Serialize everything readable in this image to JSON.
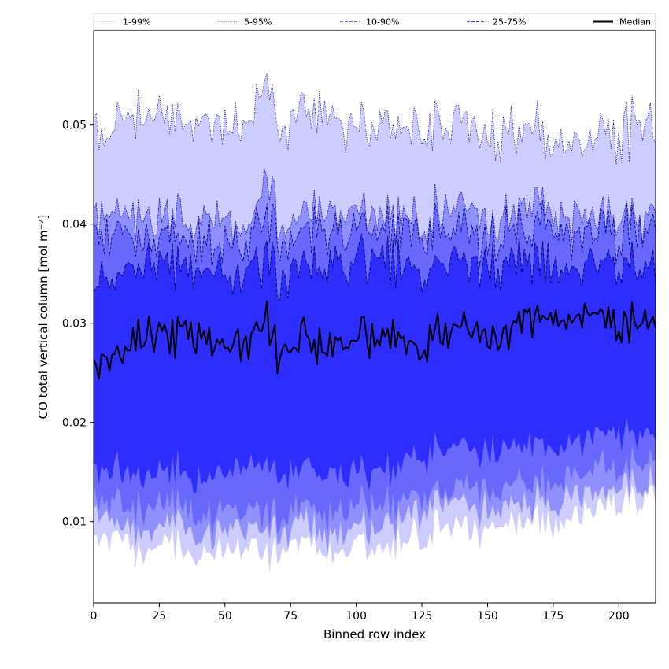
{
  "chart_data": {
    "type": "area",
    "title": "",
    "xlabel": "Binned row index",
    "ylabel": "CO total vertical column [mol m⁻²]",
    "xlim": [
      0,
      214
    ],
    "ylim": [
      0.0018,
      0.0595
    ],
    "xticks": [
      0,
      25,
      50,
      75,
      100,
      125,
      150,
      175,
      200
    ],
    "yticks": [
      0.01,
      0.02,
      0.03,
      0.04,
      0.05
    ],
    "ytick_labels": [
      "0.01",
      "0.02",
      "0.03",
      "0.04",
      "0.05"
    ],
    "grid": false,
    "legend_position": "top",
    "legend": [
      {
        "label": "1-99%",
        "style": "dotted",
        "color": "#c9c9fb"
      },
      {
        "label": "5-95%",
        "style": "dotted",
        "color": "#8a8af8"
      },
      {
        "label": "10-90%",
        "style": "dashed",
        "color": "#6a6af5"
      },
      {
        "label": "25-75%",
        "style": "dashed",
        "color": "#3c3cf0"
      },
      {
        "label": "Median",
        "style": "solid",
        "color": "#000000"
      }
    ],
    "band_fill_colors": [
      "#ccccff",
      "#8f8ffd",
      "#6868fc",
      "#2d2dfe"
    ],
    "band_edge_colors": [
      "#00008b",
      "#0000a0",
      "#000080",
      "#000060"
    ],
    "median_color": "#000000",
    "profile": {
      "x": [
        0,
        10,
        20,
        30,
        40,
        50,
        60,
        66,
        70,
        80,
        90,
        100,
        110,
        120,
        125,
        130,
        140,
        150,
        160,
        170,
        175,
        180,
        190,
        200,
        210,
        214
      ],
      "p1": [
        0.0085,
        0.008,
        0.0068,
        0.008,
        0.006,
        0.0075,
        0.007,
        0.0065,
        0.007,
        0.0078,
        0.006,
        0.008,
        0.0075,
        0.0085,
        0.009,
        0.0095,
        0.009,
        0.0095,
        0.0098,
        0.01,
        0.0095,
        0.0105,
        0.011,
        0.0115,
        0.0125,
        0.013
      ],
      "p5": [
        0.0105,
        0.01,
        0.009,
        0.01,
        0.008,
        0.0095,
        0.009,
        0.0085,
        0.009,
        0.0098,
        0.008,
        0.01,
        0.0095,
        0.0105,
        0.011,
        0.0115,
        0.011,
        0.0115,
        0.0118,
        0.012,
        0.0115,
        0.0125,
        0.013,
        0.0135,
        0.014,
        0.0145
      ],
      "p10": [
        0.0125,
        0.012,
        0.011,
        0.012,
        0.01,
        0.0115,
        0.011,
        0.0105,
        0.011,
        0.0118,
        0.01,
        0.012,
        0.0115,
        0.0125,
        0.013,
        0.0135,
        0.013,
        0.0135,
        0.0138,
        0.014,
        0.0135,
        0.0145,
        0.015,
        0.0155,
        0.016,
        0.0165
      ],
      "p25": [
        0.015,
        0.0155,
        0.0145,
        0.0155,
        0.014,
        0.015,
        0.015,
        0.0155,
        0.015,
        0.0155,
        0.014,
        0.0155,
        0.015,
        0.016,
        0.0165,
        0.017,
        0.017,
        0.017,
        0.0175,
        0.0178,
        0.0172,
        0.018,
        0.0185,
        0.0188,
        0.019,
        0.0192
      ],
      "median": [
        0.0255,
        0.027,
        0.0285,
        0.029,
        0.0285,
        0.028,
        0.0275,
        0.03,
        0.027,
        0.0285,
        0.027,
        0.0285,
        0.029,
        0.0275,
        0.028,
        0.0285,
        0.029,
        0.029,
        0.0295,
        0.0305,
        0.031,
        0.03,
        0.0305,
        0.03,
        0.0305,
        0.031
      ],
      "p75": [
        0.0335,
        0.035,
        0.0355,
        0.036,
        0.035,
        0.035,
        0.0345,
        0.036,
        0.035,
        0.036,
        0.035,
        0.0365,
        0.0365,
        0.0355,
        0.0355,
        0.036,
        0.036,
        0.0355,
        0.036,
        0.0365,
        0.036,
        0.0355,
        0.036,
        0.036,
        0.036,
        0.0365
      ],
      "p90": [
        0.038,
        0.039,
        0.0385,
        0.0385,
        0.038,
        0.038,
        0.0375,
        0.041,
        0.0385,
        0.039,
        0.0385,
        0.0395,
        0.0395,
        0.0385,
        0.0385,
        0.039,
        0.039,
        0.0385,
        0.039,
        0.04,
        0.0395,
        0.0385,
        0.039,
        0.039,
        0.0392,
        0.0395
      ],
      "p95": [
        0.04,
        0.041,
        0.0405,
        0.0405,
        0.04,
        0.04,
        0.0395,
        0.044,
        0.0405,
        0.041,
        0.0405,
        0.0415,
        0.041,
        0.04,
        0.0405,
        0.041,
        0.041,
        0.0405,
        0.041,
        0.042,
        0.0415,
        0.04,
        0.0405,
        0.0405,
        0.041,
        0.0415
      ],
      "p99": [
        0.049,
        0.05,
        0.0505,
        0.051,
        0.05,
        0.05,
        0.0495,
        0.055,
        0.0505,
        0.051,
        0.05,
        0.0505,
        0.0505,
        0.0495,
        0.0495,
        0.05,
        0.05,
        0.049,
        0.0495,
        0.05,
        0.049,
        0.047,
        0.0485,
        0.049,
        0.05,
        0.05
      ]
    }
  }
}
